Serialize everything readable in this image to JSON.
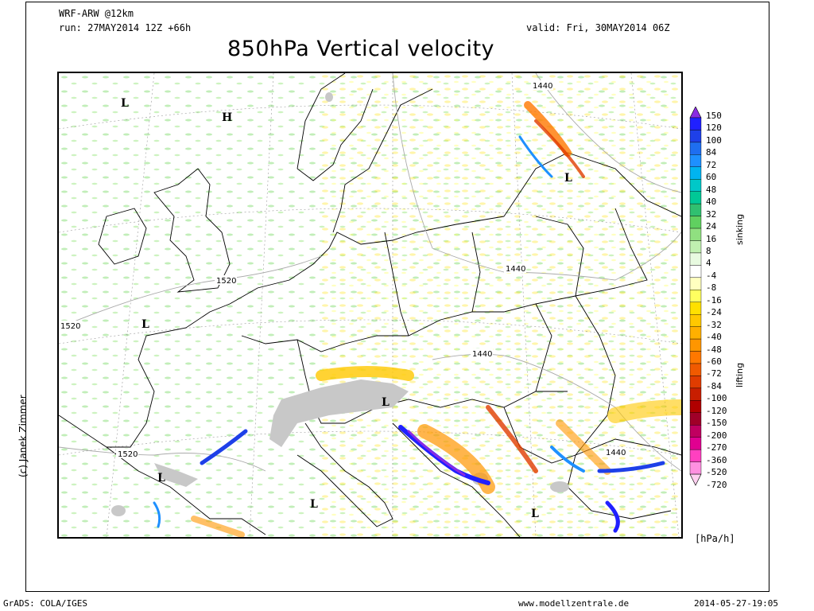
{
  "header": {
    "model": "WRF-ARW @12km",
    "run": "run: 27MAY2014 12Z +66h",
    "valid": "valid: Fri, 30MAY2014 06Z",
    "title": "850hPa Vertical velocity"
  },
  "footer": {
    "software": "GrADS: COLA/IGES",
    "website": "www.modellzentrale.de",
    "timestamp": "2014-05-27-19:05",
    "copyright": "(c) Janek Zimmer"
  },
  "legend": {
    "unit": "[hPa/h]",
    "upper_label": "sinking",
    "lower_label": "lifting",
    "levels": [
      "150",
      "120",
      "100",
      "84",
      "72",
      "60",
      "48",
      "40",
      "32",
      "24",
      "16",
      "8",
      "4",
      "-4",
      "-8",
      "-16",
      "-24",
      "-32",
      "-40",
      "-48",
      "-60",
      "-72",
      "-84",
      "-100",
      "-120",
      "-150",
      "-200",
      "-270",
      "-360",
      "-520",
      "-720"
    ],
    "colors": [
      "#8a2be2",
      "#2020ff",
      "#1e40e8",
      "#1e6ef0",
      "#1e90ff",
      "#00b4f0",
      "#00c8c8",
      "#00c896",
      "#30c070",
      "#60d060",
      "#90e080",
      "#c0f0b0",
      "#e8fae0",
      "#ffffff",
      "#ffffc0",
      "#ffff60",
      "#ffe000",
      "#ffc800",
      "#ffb000",
      "#ff9600",
      "#ff7800",
      "#f05a00",
      "#e03c00",
      "#c81e00",
      "#b00000",
      "#a00028",
      "#c00060",
      "#e00090",
      "#ff40c0",
      "#ff90e0",
      "#ffd0f0"
    ]
  },
  "map": {
    "pressure_systems": [
      {
        "symbol": "L"
      },
      {
        "symbol": "H"
      },
      {
        "symbol": "L"
      },
      {
        "symbol": "L"
      },
      {
        "symbol": "L"
      },
      {
        "symbol": "L"
      },
      {
        "symbol": "L"
      },
      {
        "symbol": "L"
      }
    ],
    "contour_labels": [
      "1440",
      "1440",
      "1440",
      "1440",
      "1520",
      "1520",
      "1520"
    ]
  }
}
